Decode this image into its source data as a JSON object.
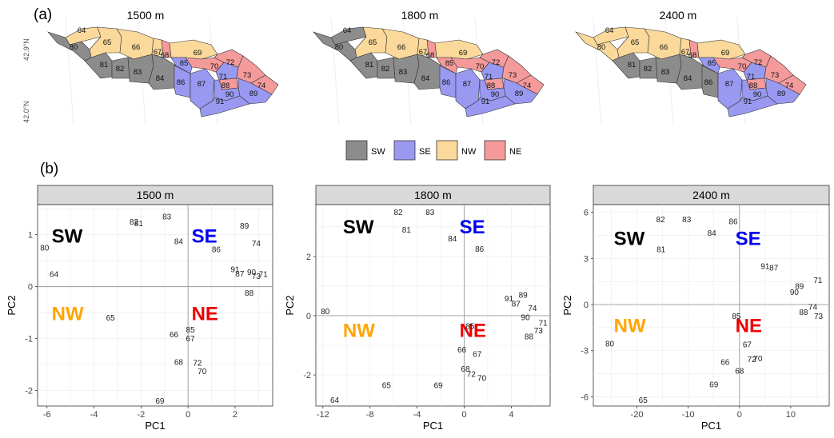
{
  "panel_a_label": "(a)",
  "panel_b_label": "(b)",
  "lat_labels": [
    "42.9°N",
    "42.0°N"
  ],
  "group_colors": {
    "SW": "#8c8c8c",
    "SE": "#9999f2",
    "NW": "#fad99b",
    "NE": "#f59a9a"
  },
  "legend": [
    {
      "key": "SW",
      "label": "SW"
    },
    {
      "key": "SE",
      "label": "SE"
    },
    {
      "key": "NW",
      "label": "NW"
    },
    {
      "key": "NE",
      "label": "NE"
    }
  ],
  "maps": [
    {
      "title": "1500 m",
      "groups": {
        "SW": [
          "80",
          "81",
          "82",
          "83",
          "84"
        ],
        "NW": [
          "64",
          "65",
          "66",
          "67",
          "69"
        ],
        "NE": [
          "68",
          "70",
          "72",
          "73",
          "74",
          "88"
        ],
        "SE": [
          "71",
          "85",
          "86",
          "87",
          "89",
          "90",
          "91"
        ]
      }
    },
    {
      "title": "1800 m",
      "groups": {
        "SW": [
          "64",
          "80",
          "81",
          "82",
          "83",
          "84"
        ],
        "NW": [
          "65",
          "66",
          "67",
          "69"
        ],
        "NE": [
          "68",
          "70",
          "72",
          "73",
          "74",
          "85",
          "88"
        ],
        "SE": [
          "71",
          "86",
          "87",
          "89",
          "90",
          "91"
        ]
      }
    },
    {
      "title": "2400 m",
      "groups": {
        "SW": [
          "81",
          "82",
          "83",
          "84",
          "86"
        ],
        "NW": [
          "64",
          "65",
          "66",
          "67",
          "69",
          "80"
        ],
        "NE": [
          "68",
          "70",
          "72",
          "73",
          "74",
          "88"
        ],
        "SE": [
          "71",
          "85",
          "87",
          "89",
          "90",
          "91"
        ]
      }
    }
  ],
  "chart_data": [
    {
      "type": "scatter",
      "title": "1500 m",
      "xlabel": "PC1",
      "ylabel": "PC2",
      "xlim": [
        -6.4,
        3.6
      ],
      "ylim": [
        -2.3,
        1.58
      ],
      "xticks": [
        -6,
        -4,
        -2,
        0,
        2
      ],
      "yticks": [
        -2,
        -1,
        0,
        1
      ],
      "grid": true,
      "quadrant_labels": [
        {
          "text": "SW",
          "x": -5.8,
          "y": 0.95,
          "color": "#000000"
        },
        {
          "text": "SE",
          "x": 0.15,
          "y": 0.95,
          "color": "#0000ee"
        },
        {
          "text": "NW",
          "x": -5.8,
          "y": -0.55,
          "color": "#ffa500"
        },
        {
          "text": "NE",
          "x": 0.15,
          "y": -0.55,
          "color": "#ee0000"
        }
      ],
      "points": [
        {
          "label": "64",
          "x": -5.7,
          "y": 0.24
        },
        {
          "label": "65",
          "x": -3.3,
          "y": -0.6
        },
        {
          "label": "66",
          "x": -0.6,
          "y": -0.92
        },
        {
          "label": "67",
          "x": 0.1,
          "y": -1.0
        },
        {
          "label": "68",
          "x": -0.4,
          "y": -1.45
        },
        {
          "label": "69",
          "x": -1.2,
          "y": -2.2
        },
        {
          "label": "70",
          "x": 0.6,
          "y": -1.63
        },
        {
          "label": "71",
          "x": 3.2,
          "y": 0.24
        },
        {
          "label": "72",
          "x": 0.4,
          "y": -1.47
        },
        {
          "label": "73",
          "x": 2.9,
          "y": 0.2
        },
        {
          "label": "74",
          "x": 2.9,
          "y": 0.83
        },
        {
          "label": "80",
          "x": -6.1,
          "y": 0.75
        },
        {
          "label": "81",
          "x": -2.1,
          "y": 1.22
        },
        {
          "label": "82",
          "x": -2.3,
          "y": 1.25
        },
        {
          "label": "83",
          "x": -0.9,
          "y": 1.35
        },
        {
          "label": "84",
          "x": -0.4,
          "y": 0.87
        },
        {
          "label": "85",
          "x": 0.1,
          "y": -0.83
        },
        {
          "label": "86",
          "x": 1.2,
          "y": 0.72
        },
        {
          "label": "87",
          "x": 2.2,
          "y": 0.25
        },
        {
          "label": "88",
          "x": 2.6,
          "y": -0.12
        },
        {
          "label": "89",
          "x": 2.4,
          "y": 1.17
        },
        {
          "label": "90",
          "x": 2.7,
          "y": 0.28
        },
        {
          "label": "91",
          "x": 2.0,
          "y": 0.33
        }
      ]
    },
    {
      "type": "scatter",
      "title": "1800 m",
      "xlabel": "PC1",
      "ylabel": "PC2",
      "xlim": [
        -12.6,
        7.3
      ],
      "ylim": [
        -3.05,
        3.75
      ],
      "xticks": [
        -12,
        -8,
        -4,
        0,
        4
      ],
      "yticks": [
        -2,
        0,
        2
      ],
      "grid": true,
      "quadrant_labels": [
        {
          "text": "SW",
          "x": -10.3,
          "y": 2.95,
          "color": "#000000"
        },
        {
          "text": "SE",
          "x": -0.4,
          "y": 2.95,
          "color": "#0000ee"
        },
        {
          "text": "NW",
          "x": -10.3,
          "y": -0.55,
          "color": "#ffa500"
        },
        {
          "text": "NE",
          "x": -0.4,
          "y": -0.55,
          "color": "#ee0000"
        }
      ],
      "points": [
        {
          "label": "64",
          "x": -11.0,
          "y": -2.85
        },
        {
          "label": "65",
          "x": -6.6,
          "y": -2.35
        },
        {
          "label": "66",
          "x": -0.2,
          "y": -1.15
        },
        {
          "label": "67",
          "x": 1.1,
          "y": -1.3
        },
        {
          "label": "68",
          "x": 0.1,
          "y": -1.8
        },
        {
          "label": "69",
          "x": -2.2,
          "y": -2.35
        },
        {
          "label": "70",
          "x": 1.5,
          "y": -2.1
        },
        {
          "label": "71",
          "x": 6.7,
          "y": -0.25
        },
        {
          "label": "72",
          "x": 0.6,
          "y": -1.97
        },
        {
          "label": "73",
          "x": 6.3,
          "y": -0.5
        },
        {
          "label": "74",
          "x": 5.8,
          "y": 0.25
        },
        {
          "label": "80",
          "x": -11.8,
          "y": 0.15
        },
        {
          "label": "81",
          "x": -4.9,
          "y": 2.9
        },
        {
          "label": "82",
          "x": -5.6,
          "y": 3.5
        },
        {
          "label": "83",
          "x": -2.9,
          "y": 3.5
        },
        {
          "label": "84",
          "x": -1.0,
          "y": 2.6
        },
        {
          "label": "85",
          "x": 0.5,
          "y": -0.35
        },
        {
          "label": "86",
          "x": 1.3,
          "y": 2.25
        },
        {
          "label": "87",
          "x": 4.4,
          "y": 0.4
        },
        {
          "label": "88",
          "x": 5.5,
          "y": -0.7
        },
        {
          "label": "89",
          "x": 5.0,
          "y": 0.7
        },
        {
          "label": "90",
          "x": 5.2,
          "y": -0.05
        },
        {
          "label": "91",
          "x": 3.8,
          "y": 0.58
        }
      ]
    },
    {
      "type": "scatter",
      "title": "2400 m",
      "xlabel": "PC1",
      "ylabel": "PC2",
      "xlim": [
        -28.5,
        17.5
      ],
      "ylim": [
        -6.6,
        6.5
      ],
      "xticks": [
        -20,
        -10,
        0,
        10
      ],
      "yticks": [
        -6,
        -3,
        0,
        3,
        6
      ],
      "grid": true,
      "quadrant_labels": [
        {
          "text": "SW",
          "x": -24.5,
          "y": 4.2,
          "color": "#000000"
        },
        {
          "text": "SE",
          "x": -0.8,
          "y": 4.2,
          "color": "#0000ee"
        },
        {
          "text": "NW",
          "x": -24.5,
          "y": -1.45,
          "color": "#ffa500"
        },
        {
          "text": "NE",
          "x": -0.8,
          "y": -1.45,
          "color": "#ee0000"
        }
      ],
      "points": [
        {
          "label": "65",
          "x": -18.8,
          "y": -6.2
        },
        {
          "label": "66",
          "x": -2.8,
          "y": -3.75
        },
        {
          "label": "67",
          "x": 1.5,
          "y": -2.6
        },
        {
          "label": "68",
          "x": 0.0,
          "y": -4.3
        },
        {
          "label": "69",
          "x": -5.0,
          "y": -5.2
        },
        {
          "label": "70",
          "x": 3.6,
          "y": -3.5
        },
        {
          "label": "71",
          "x": 15.3,
          "y": 1.6
        },
        {
          "label": "72",
          "x": 2.4,
          "y": -3.55
        },
        {
          "label": "73",
          "x": 15.4,
          "y": -0.75
        },
        {
          "label": "74",
          "x": 14.3,
          "y": -0.15
        },
        {
          "label": "80",
          "x": -25.3,
          "y": -2.55
        },
        {
          "label": "81",
          "x": -15.3,
          "y": 3.6
        },
        {
          "label": "82",
          "x": -15.4,
          "y": 5.55
        },
        {
          "label": "83",
          "x": -10.3,
          "y": 5.55
        },
        {
          "label": "84",
          "x": -5.4,
          "y": 4.65
        },
        {
          "label": "85",
          "x": -0.6,
          "y": -0.75
        },
        {
          "label": "86",
          "x": -1.2,
          "y": 5.4
        },
        {
          "label": "87",
          "x": 6.7,
          "y": 2.4
        },
        {
          "label": "88",
          "x": 12.5,
          "y": -0.5
        },
        {
          "label": "89",
          "x": 11.7,
          "y": 1.2
        },
        {
          "label": "90",
          "x": 10.7,
          "y": 0.8
        },
        {
          "label": "91",
          "x": 5.0,
          "y": 2.5
        }
      ]
    }
  ]
}
